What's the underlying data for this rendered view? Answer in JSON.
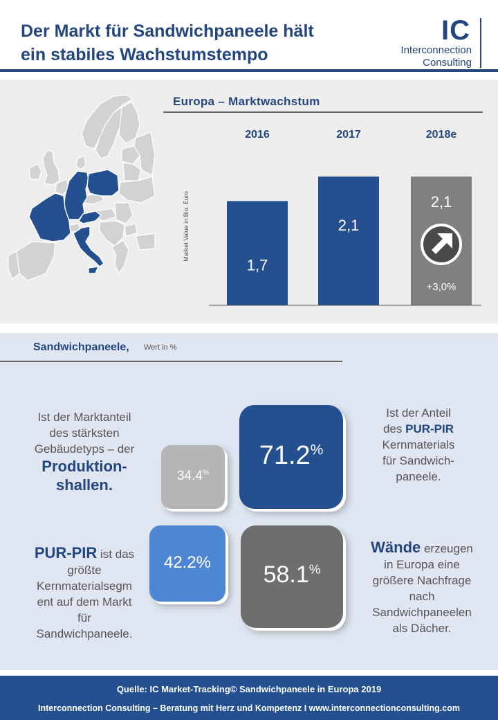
{
  "header": {
    "title_line1": "Der Markt für Sandwichpaneele hält",
    "title_line2": "ein stabiles Wachstumstempo",
    "logo_mark": "IC",
    "logo_line1": "Interconnection",
    "logo_line2": "Consulting"
  },
  "colors": {
    "brand_blue": "#24508f",
    "highlight_blue": "#4f86d4",
    "grey_dark": "#6e6e6e",
    "grey_light": "#b5b5b5",
    "map_highlight": "#24508f",
    "map_other": "#d2d2d2"
  },
  "map": {
    "highlighted_countries": [
      "France",
      "Germany",
      "Poland",
      "Austria",
      "Italy"
    ]
  },
  "chart_data": {
    "type": "bar",
    "title": "Europa – Marktwachstum",
    "ylabel": "Market Value in Bio. Euro",
    "categories": [
      "2016",
      "2017",
      "2018e"
    ],
    "values": [
      1.7,
      2.1,
      2.1
    ],
    "value_labels": [
      "1,7",
      "2,1",
      "2,1"
    ],
    "bar_colors": [
      "#24508f",
      "#24508f",
      "#808080"
    ],
    "growth_label": "+3,0%",
    "growth_icon": "arrow-up-right-icon",
    "ylim": [
      0,
      2.1
    ],
    "grid": false,
    "legend": "none"
  },
  "sandwich": {
    "title": "Sandwichpaneele,",
    "subtitle": "Wert in %",
    "tiles": {
      "pur_pir_core_share": {
        "value": "71.2",
        "unit": "%"
      },
      "production_halls_share": {
        "value": "34.4",
        "unit": "%"
      },
      "pur_pir_segment_share": {
        "value": "42.2%"
      },
      "walls_share": {
        "value": "58.1",
        "unit": "%"
      }
    },
    "callout_top_left": {
      "line1": "Ist der Marktanteil",
      "line2": "des stärksten",
      "line3": "Gebäudetyps – der",
      "big1": "Produktion-",
      "big2": "shallen."
    },
    "callout_top_right": {
      "line1": "Ist der Anteil",
      "line2_pre": "des ",
      "line2_hl": "PUR-PIR",
      "line3": "Kernmaterials",
      "line4": "für Sandwich-",
      "line5": "paneele."
    },
    "callout_bottom_left": {
      "hl": "PUR-PIR",
      "line1_post": " ist das",
      "line2": "größte",
      "line3": "Kernmaterialsegm",
      "line4": "ent auf dem Markt",
      "line5": "für",
      "line6": "Sandwichpaneele."
    },
    "callout_bottom_right": {
      "hl": "Wände",
      "line1_post": " erzeugen",
      "line2": "in Europa eine",
      "line3": "größere Nachfrage",
      "line4": "nach",
      "line5": "Sandwichpaneelen",
      "line6": "als Dächer."
    }
  },
  "footer": {
    "source": "Quelle: IC Market-Tracking© Sandwichpaneele in Europa 2019",
    "tagline": "Interconnection Consulting – Beratung mit Herz und Kompetenz  I  www.interconnectionconsulting.com"
  }
}
